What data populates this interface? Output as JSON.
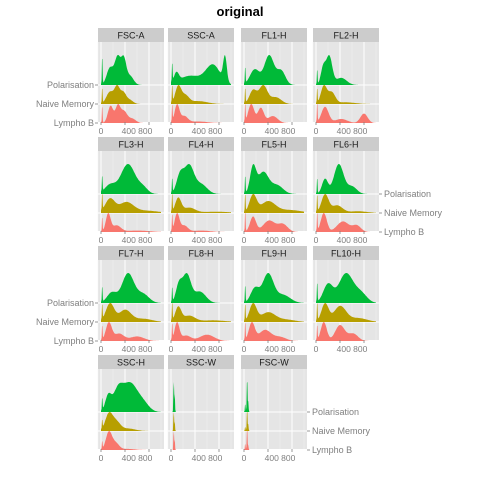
{
  "title": "original",
  "chart_data": {
    "type": "area",
    "title": "original",
    "panels": [
      "FSC-A",
      "SSC-A",
      "FL1-H",
      "FL2-H",
      "FL3-H",
      "FL4-H",
      "FL5-H",
      "FL6-H",
      "FL7-H",
      "FL8-H",
      "FL9-H",
      "FL10-H",
      "SSC-H",
      "SSC-W",
      "FSC-W"
    ],
    "y_categories": [
      "Polarisation",
      "Naive Memory",
      "Lympho B"
    ],
    "x_ticks": [
      0,
      400,
      800
    ],
    "x_tick_labels": [
      "0",
      "400 800"
    ],
    "xlim": [
      -50,
      1050
    ],
    "series": [
      {
        "name": "Polarisation",
        "color": "#00BA38"
      },
      {
        "name": "Naive Memory",
        "color": "#B79F00"
      },
      {
        "name": "Lympho B",
        "color": "#F8766D"
      }
    ],
    "grid": true,
    "facet_layout": "wrapped 4 columns, y labels alternate left/right"
  }
}
